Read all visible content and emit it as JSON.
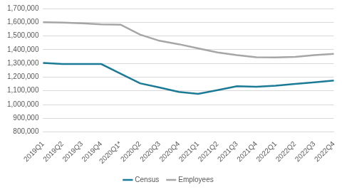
{
  "chart_data": {
    "type": "line",
    "categories": [
      "2019Q1",
      "2019Q2",
      "2019Q3",
      "2019Q4",
      "2020Q1*",
      "2020Q2",
      "2020Q3",
      "2020Q4",
      "2021Q1",
      "2021Q2",
      "2021Q3",
      "2021Q4",
      "2022Q1",
      "2022Q2",
      "2022Q3",
      "2022Q4"
    ],
    "series": [
      {
        "name": "Census",
        "color": "#1b7a95",
        "marker": "none",
        "line_style": "solid",
        "values": [
          1303000,
          1295000,
          1295000,
          1295000,
          1225000,
          1155000,
          1125000,
          1092000,
          1078000,
          1105000,
          1133000,
          1130000,
          1138000,
          1150000,
          1162000,
          1175000
        ]
      },
      {
        "name": "Employees",
        "color": "#a6a6a6",
        "marker": "none",
        "line_style": "solid",
        "values": [
          1600000,
          1597000,
          1593000,
          1585000,
          1582000,
          1510000,
          1465000,
          1440000,
          1410000,
          1380000,
          1360000,
          1345000,
          1343000,
          1348000,
          1360000,
          1370000
        ]
      }
    ],
    "ylim": [
      800000,
      1700000
    ],
    "yticks": [
      {
        "value": 800000,
        "label": "800,000"
      },
      {
        "value": 900000,
        "label": "900,000"
      },
      {
        "value": 1000000,
        "label": "1,000,000"
      },
      {
        "value": 1100000,
        "label": "1,100,000"
      },
      {
        "value": 1200000,
        "label": "1,200,000"
      },
      {
        "value": 1300000,
        "label": "1,300,000"
      },
      {
        "value": 1400000,
        "label": "1,400,000"
      },
      {
        "value": 1500000,
        "label": "1,500,000"
      },
      {
        "value": 1600000,
        "label": "1,600,000"
      },
      {
        "value": 1700000,
        "label": "1,700,000"
      }
    ],
    "grid": true,
    "legend": "bottom"
  }
}
